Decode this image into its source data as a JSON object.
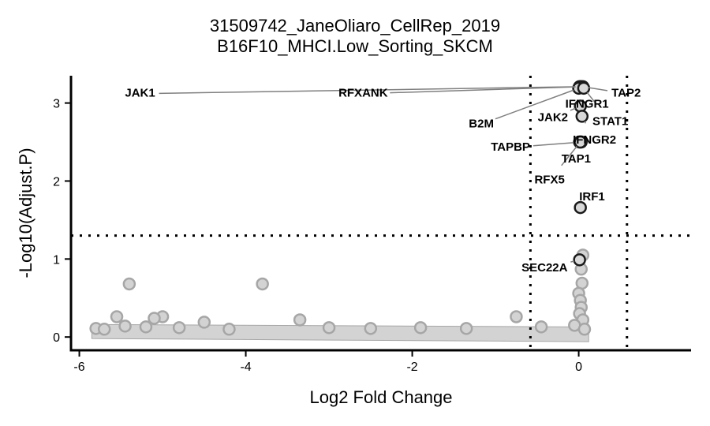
{
  "chart_data": {
    "type": "scatter",
    "title": "31509742_JaneOliaro_CellRep_2019",
    "subtitle": "B16F10_MHCI.Low_Sorting_SKCM",
    "xlabel": "Log2 Fold Change",
    "ylabel": "-Log10(Adjust.P)",
    "xlim": [
      -6.1,
      1.35
    ],
    "ylim": [
      -0.17,
      3.35
    ],
    "xticks": [
      -6,
      -4,
      -2,
      0
    ],
    "yticks": [
      0,
      1,
      2,
      3
    ],
    "thresholds": {
      "y": 1.3,
      "x": [
        -0.58,
        0.58
      ]
    },
    "colors": {
      "significant_fill": "#d8d8d8",
      "significant_stroke": "#1a1a1a",
      "background_fill": "#d3d3d3",
      "background_stroke": "#a6a6a6",
      "threshold_line": "#000000",
      "connector": "#7f7f7f"
    },
    "significant_points": [
      {
        "gene": "JAK1",
        "x": 0.01,
        "y": 3.21,
        "label": [
          -5.27,
          3.12
        ]
      },
      {
        "gene": "RFXANK",
        "x": 0.03,
        "y": 3.21,
        "label": [
          -2.59,
          3.12
        ]
      },
      {
        "gene": "TAP2",
        "x": 0.05,
        "y": 3.21,
        "label": [
          0.57,
          3.12
        ]
      },
      {
        "gene": "IFNGR1",
        "x": 0.02,
        "y": 3.21,
        "label": [
          0.1,
          2.98
        ]
      },
      {
        "gene": "B2M",
        "x": 0.0,
        "y": 3.19,
        "label": [
          -1.17,
          2.73
        ]
      },
      {
        "gene": "STAT1",
        "x": 0.06,
        "y": 3.19,
        "label": [
          0.38,
          2.76
        ]
      },
      {
        "gene": "JAK2",
        "x": 0.02,
        "y": 2.96,
        "label": [
          -0.31,
          2.81
        ]
      },
      {
        "gene": "IFNGR2",
        "x": 0.04,
        "y": 2.83,
        "label": [
          0.19,
          2.52
        ]
      },
      {
        "gene": "TAPBP",
        "x": 0.03,
        "y": 2.5,
        "label": [
          -0.82,
          2.43
        ]
      },
      {
        "gene": "TAP1",
        "x": 0.01,
        "y": 2.5,
        "label": [
          -0.03,
          2.28
        ]
      },
      {
        "gene": "RFX5",
        "x": 0.02,
        "y": 2.5,
        "label": [
          -0.35,
          2.01
        ]
      },
      {
        "gene": "IRF1",
        "x": 0.02,
        "y": 1.66,
        "label": [
          0.16,
          1.79
        ]
      },
      {
        "gene": "SEC22A",
        "x": 0.01,
        "y": 0.99,
        "label": [
          -0.41,
          0.88
        ]
      }
    ],
    "background_points": [
      {
        "x": -5.4,
        "y": 0.68
      },
      {
        "x": -3.8,
        "y": 0.68
      },
      {
        "x": -5.55,
        "y": 0.26
      },
      {
        "x": -5.0,
        "y": 0.26
      },
      {
        "x": -5.1,
        "y": 0.24
      },
      {
        "x": -4.5,
        "y": 0.19
      },
      {
        "x": -3.35,
        "y": 0.22
      },
      {
        "x": -0.75,
        "y": 0.26
      },
      {
        "x": -5.8,
        "y": 0.11
      },
      {
        "x": -5.7,
        "y": 0.1
      },
      {
        "x": -5.45,
        "y": 0.14
      },
      {
        "x": -5.2,
        "y": 0.13
      },
      {
        "x": -4.8,
        "y": 0.12
      },
      {
        "x": -4.2,
        "y": 0.1
      },
      {
        "x": -3.0,
        "y": 0.12
      },
      {
        "x": -2.5,
        "y": 0.11
      },
      {
        "x": -1.9,
        "y": 0.12
      },
      {
        "x": -1.35,
        "y": 0.11
      },
      {
        "x": -0.45,
        "y": 0.13
      },
      {
        "x": 0.05,
        "y": 1.05
      },
      {
        "x": 0.03,
        "y": 0.87
      },
      {
        "x": 0.04,
        "y": 0.69
      },
      {
        "x": 0.0,
        "y": 0.56
      },
      {
        "x": 0.02,
        "y": 0.47
      },
      {
        "x": 0.03,
        "y": 0.38
      },
      {
        "x": 0.01,
        "y": 0.3
      },
      {
        "x": 0.05,
        "y": 0.22
      },
      {
        "x": -0.05,
        "y": 0.15
      },
      {
        "x": 0.07,
        "y": 0.1
      }
    ]
  }
}
